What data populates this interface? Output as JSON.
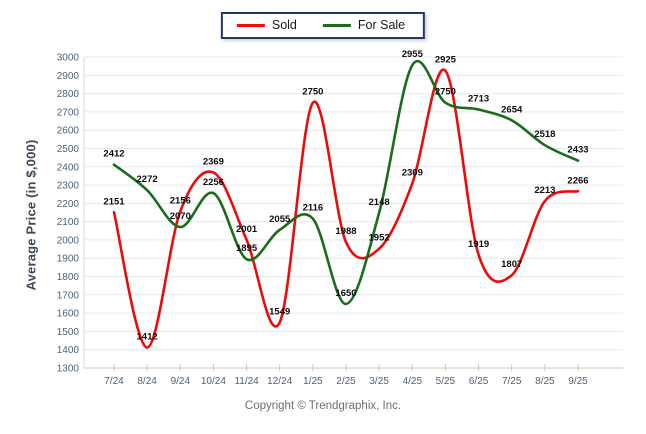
{
  "footer": {
    "copyright": "Copyright © Trendgraphix, Inc."
  },
  "chart_data": {
    "type": "line",
    "title": "",
    "xlabel": "",
    "ylabel": "Average Price (in $,000)",
    "categories": [
      "7/24",
      "8/24",
      "9/24",
      "10/24",
      "11/24",
      "12/24",
      "1/25",
      "2/25",
      "3/25",
      "4/25",
      "5/25",
      "6/25",
      "7/25",
      "8/25",
      "9/25"
    ],
    "series": [
      {
        "name": "Sold",
        "color": "#ee0a0a",
        "values": [
          2151,
          1412,
          2156,
          2369,
          2001,
          1549,
          2750,
          1988,
          1952,
          2309,
          2925,
          1919,
          1807,
          2213,
          2266
        ]
      },
      {
        "name": "For Sale",
        "color": "#1a6b1a",
        "values": [
          2412,
          2272,
          2070,
          2256,
          1895,
          2055,
          2116,
          1650,
          2148,
          2955,
          2750,
          2713,
          2654,
          2518,
          2433
        ]
      }
    ],
    "ylim": [
      1300,
      3000
    ],
    "ytick_step": 100,
    "grid": "horizontal-only",
    "legend_position": "top-center",
    "point_labels": true
  }
}
